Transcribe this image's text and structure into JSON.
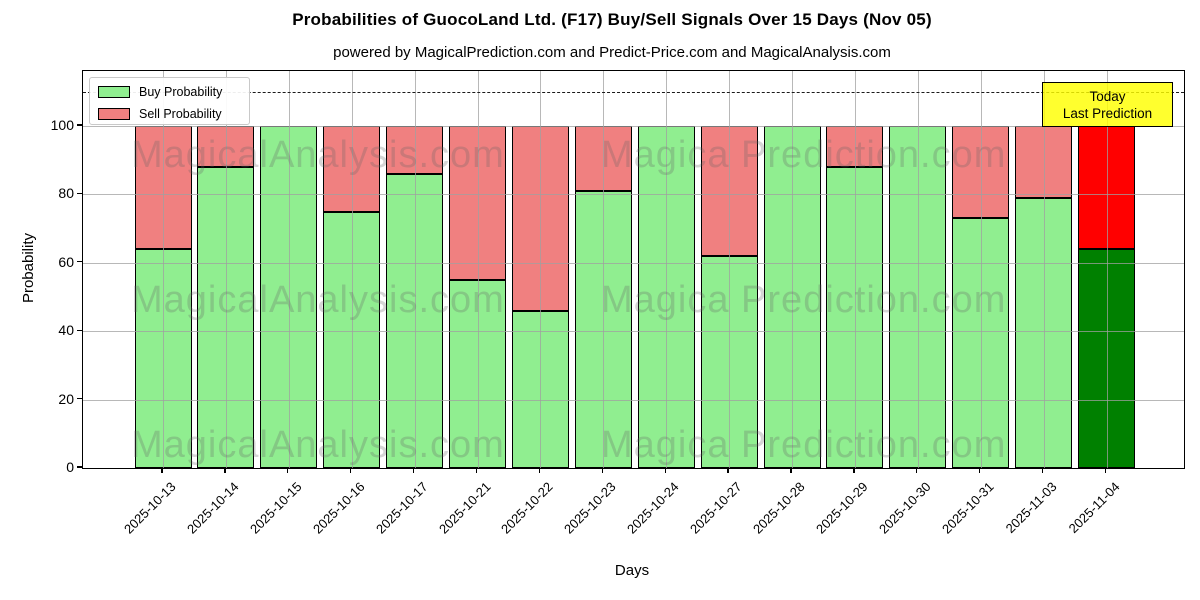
{
  "chart_data": {
    "type": "bar",
    "stacked": true,
    "title": "Probabilities of GuocoLand Ltd. (F17) Buy/Sell Signals Over 15 Days (Nov 05)",
    "subtitle": "powered by MagicalPrediction.com and Predict-Price.com and MagicalAnalysis.com",
    "xlabel": "Days",
    "ylabel": "Probability",
    "categories": [
      "2025-10-13",
      "2025-10-14",
      "2025-10-15",
      "2025-10-16",
      "2025-10-17",
      "2025-10-21",
      "2025-10-22",
      "2025-10-23",
      "2025-10-24",
      "2025-10-27",
      "2025-10-28",
      "2025-10-29",
      "2025-10-30",
      "2025-10-31",
      "2025-11-03",
      "2025-11-04"
    ],
    "series": [
      {
        "name": "Buy Probability",
        "color": "#90EE90",
        "values": [
          64,
          88,
          100,
          75,
          86,
          55,
          46,
          81,
          100,
          62,
          100,
          88,
          100,
          73,
          79,
          64
        ]
      },
      {
        "name": "Sell Probability",
        "color": "#F08080",
        "values": [
          36,
          12,
          0,
          25,
          14,
          45,
          54,
          19,
          0,
          38,
          0,
          12,
          0,
          27,
          21,
          36
        ]
      }
    ],
    "yticks": [
      0,
      20,
      40,
      60,
      80,
      100
    ],
    "ylim": [
      0,
      116
    ],
    "grid": true,
    "dashed_line_y": 110,
    "legend_position": "upper-left",
    "bar_edge_color": "#000000",
    "today": {
      "category": "2025-11-04",
      "index": 15,
      "buy_color": "#008000",
      "sell_color": "#FF0000",
      "box_color": "#FFFF00",
      "label_line1": "Today",
      "label_line2": "Last Prediction"
    },
    "watermarks": [
      "MagicalAnalysis.com",
      "Magica Prediction.com"
    ]
  }
}
